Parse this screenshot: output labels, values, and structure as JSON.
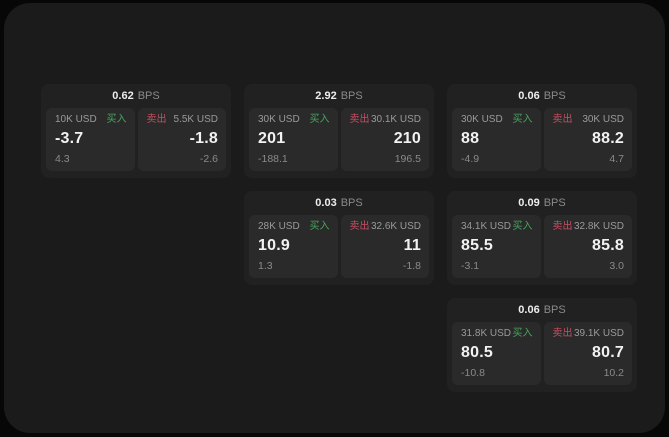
{
  "labels": {
    "bps_unit": "BPS",
    "buy": "买入",
    "sell": "卖出"
  },
  "colors": {
    "buy_green": "#46a55e",
    "sell_red": "#c64f62"
  },
  "cards": [
    {
      "row": 1,
      "col": 1,
      "bps": "0.62",
      "buy": {
        "amount": "10K USD",
        "value": "-3.7",
        "sub": "4.3"
      },
      "sell": {
        "amount": "5.5K USD",
        "value": "-1.8",
        "sub": "-2.6"
      }
    },
    {
      "row": 1,
      "col": 2,
      "bps": "2.92",
      "buy": {
        "amount": "30K USD",
        "value": "201",
        "sub": "-188.1"
      },
      "sell": {
        "amount": "30.1K USD",
        "value": "210",
        "sub": "196.5"
      }
    },
    {
      "row": 1,
      "col": 3,
      "bps": "0.06",
      "buy": {
        "amount": "30K USD",
        "value": "88",
        "sub": "-4.9"
      },
      "sell": {
        "amount": "30K USD",
        "value": "88.2",
        "sub": "4.7"
      }
    },
    {
      "row": 2,
      "col": 2,
      "bps": "0.03",
      "buy": {
        "amount": "28K USD",
        "value": "10.9",
        "sub": "1.3"
      },
      "sell": {
        "amount": "32.6K USD",
        "value": "11",
        "sub": "-1.8"
      }
    },
    {
      "row": 2,
      "col": 3,
      "bps": "0.09",
      "buy": {
        "amount": "34.1K USD",
        "value": "85.5",
        "sub": "-3.1"
      },
      "sell": {
        "amount": "32.8K USD",
        "value": "85.8",
        "sub": "3.0"
      }
    },
    {
      "row": 3,
      "col": 3,
      "bps": "0.06",
      "buy": {
        "amount": "31.8K USD",
        "value": "80.5",
        "sub": "-10.8"
      },
      "sell": {
        "amount": "39.1K USD",
        "value": "80.7",
        "sub": "10.2"
      }
    }
  ]
}
